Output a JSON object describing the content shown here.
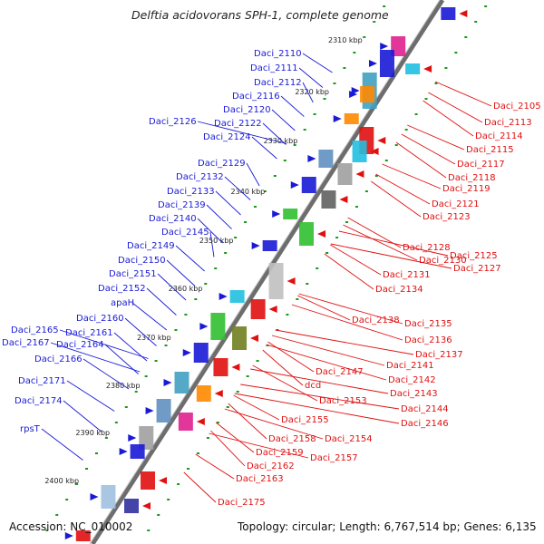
{
  "title": "Delftia acidovorans SPH-1, complete genome",
  "accession": "Accession: NC_010002",
  "summary": "Topology: circular; Length: 6,767,514 bp; Genes: 6,135",
  "colors": {
    "forward_label": "#1a1ad6",
    "reverse_label": "#e01010",
    "backbone": "#6d6d6d",
    "tick": "#1a9a1a"
  },
  "kbp_marks": [
    "2310 kbp",
    "2320 kbp",
    "2330 kbp",
    "2340 kbp",
    "2350 kbp",
    "2360 kbp",
    "2370 kbp",
    "2380 kbp",
    "2390 kbp",
    "2400 kbp"
  ],
  "forward_genes": [
    "Daci_2110",
    "Daci_2111",
    "Daci_2112",
    "Daci_2116",
    "Daci_2120",
    "Daci_2122",
    "Daci_2124",
    "Daci_2126",
    "Daci_2129",
    "Daci_2132",
    "Daci_2133",
    "Daci_2139",
    "Daci_2140",
    "Daci_2145",
    "Daci_2149",
    "Daci_2150",
    "Daci_2151",
    "Daci_2152",
    "apaH",
    "Daci_2160",
    "Daci_2161",
    "Daci_2165",
    "Daci_2167",
    "Daci_2164",
    "Daci_2166",
    "Daci_2171",
    "Daci_2174",
    "rpsT"
  ],
  "reverse_genes": [
    "Daci_2105",
    "Daci_2113",
    "Daci_2114",
    "Daci_2115",
    "Daci_2117",
    "Daci_2118",
    "Daci_2119",
    "Daci_2121",
    "Daci_2123",
    "Daci_2125",
    "Daci_2128",
    "Daci_2130",
    "Daci_2127",
    "Daci_2131",
    "Daci_2134",
    "Daci_2138",
    "Daci_2135",
    "Daci_2136",
    "Daci_2137",
    "Daci_2141",
    "Daci_2142",
    "Daci_2143",
    "Daci_2147",
    "dcd",
    "Daci_2144",
    "Daci_2146",
    "Daci_2153",
    "Daci_2155",
    "Daci_2154",
    "Daci_2158",
    "Daci_2157",
    "Daci_2159",
    "Daci_2162",
    "Daci_2163",
    "Daci_2175"
  ]
}
